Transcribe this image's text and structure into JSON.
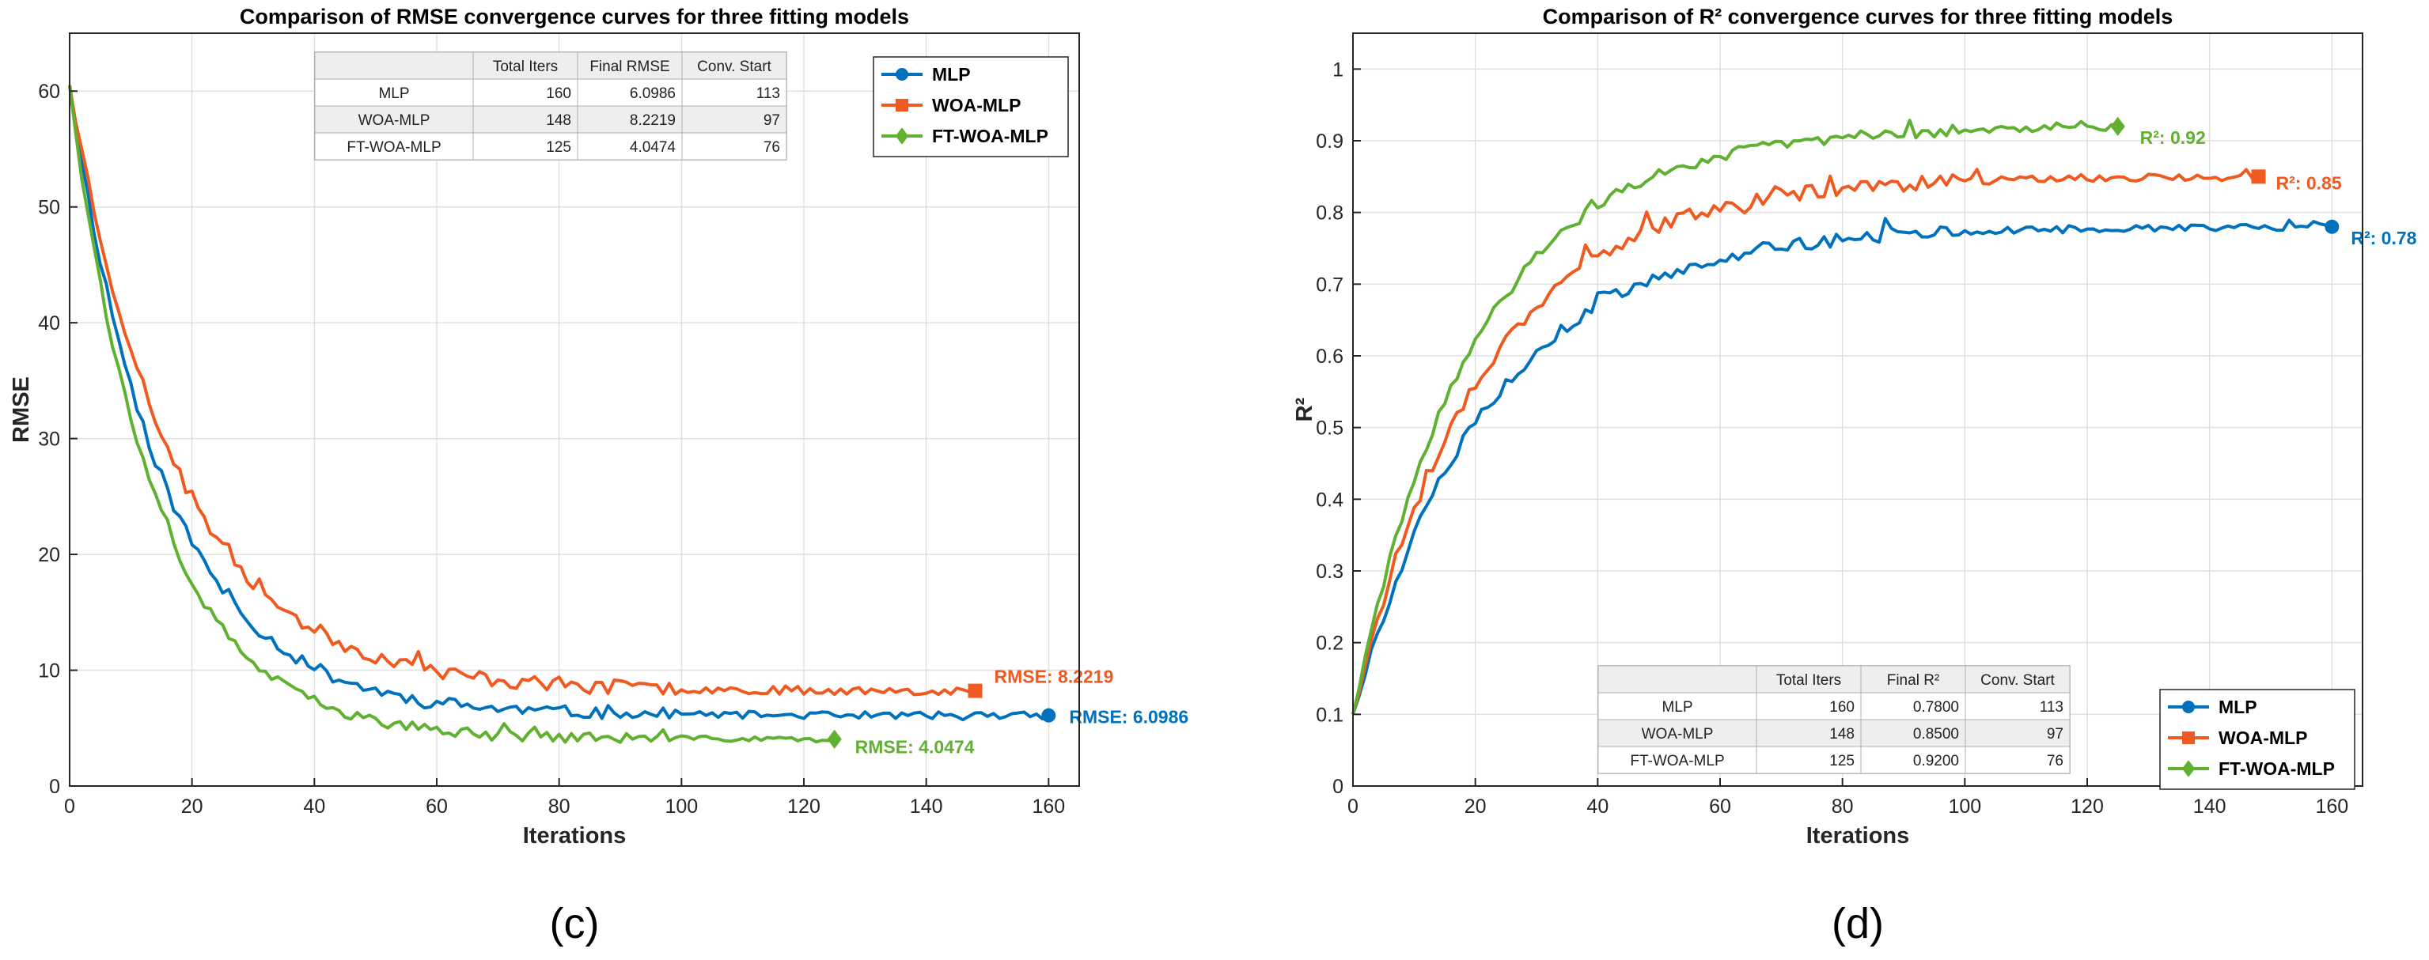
{
  "colors": {
    "mlp": "#0072BD",
    "woa": "#F0591F",
    "ft": "#5FB12F",
    "grid": "#e0e0e0",
    "axis": "#262626"
  },
  "chart_data": [
    {
      "panel_label": "(c)",
      "type": "line",
      "title": "Comparison of RMSE convergence curves for three fitting models",
      "xlabel": "Iterations",
      "ylabel": "RMSE",
      "xlim": [
        0,
        165
      ],
      "ylim": [
        0,
        65
      ],
      "xticks": [
        0,
        20,
        40,
        60,
        80,
        100,
        120,
        140,
        160
      ],
      "yticks": [
        0,
        10,
        20,
        30,
        40,
        50,
        60
      ],
      "xtick_labels": [
        "0",
        "20",
        "40",
        "60",
        "80",
        "100",
        "120",
        "140",
        "160"
      ],
      "ytick_labels": [
        "0",
        "10",
        "20",
        "30",
        "40",
        "50",
        "60"
      ],
      "grid": true,
      "legend": {
        "position": "top-right",
        "entries": [
          {
            "name": "MLP",
            "color": "#0072BD",
            "marker": "circle"
          },
          {
            "name": "WOA-MLP",
            "color": "#F0591F",
            "marker": "square"
          },
          {
            "name": "FT-WOA-MLP",
            "color": "#5FB12F",
            "marker": "diamond"
          }
        ]
      },
      "table": {
        "position": "top-center",
        "headers": [
          "",
          "Total Iters",
          "Final RMSE",
          "Conv. Start"
        ],
        "rows": [
          [
            "MLP",
            "160",
            "6.0986",
            "113"
          ],
          [
            "WOA-MLP",
            "148",
            "8.2219",
            "97"
          ],
          [
            "FT-WOA-MLP",
            "125",
            "4.0474",
            "76"
          ]
        ]
      },
      "series": [
        {
          "name": "MLP",
          "color": "#0072BD",
          "marker": "circle",
          "start": 60.5,
          "final": 6.0986,
          "total_iters": 160,
          "shape": "decay",
          "tau": 15.5,
          "noise": 0.55,
          "seed": 11,
          "end_label": "RMSE: 6.0986"
        },
        {
          "name": "WOA-MLP",
          "color": "#F0591F",
          "marker": "square",
          "start": 60.5,
          "final": 8.2219,
          "total_iters": 148,
          "shape": "decay",
          "tau": 17.5,
          "noise": 0.65,
          "seed": 23,
          "end_label": "RMSE: 8.2219"
        },
        {
          "name": "FT-WOA-MLP",
          "color": "#5FB12F",
          "marker": "diamond",
          "start": 60.5,
          "final": 4.0474,
          "total_iters": 125,
          "shape": "decay",
          "tau": 14.0,
          "noise": 0.45,
          "seed": 37,
          "end_label": "RMSE: 4.0474"
        }
      ]
    },
    {
      "panel_label": "(d)",
      "type": "line",
      "title": "Comparison of R² convergence curves for three fitting models",
      "xlabel": "Iterations",
      "ylabel": "R²",
      "xlim": [
        0,
        165
      ],
      "ylim": [
        0,
        1.05
      ],
      "xticks": [
        0,
        20,
        40,
        60,
        80,
        100,
        120,
        140,
        160
      ],
      "yticks": [
        0,
        0.1,
        0.2,
        0.3,
        0.4,
        0.5,
        0.6,
        0.7,
        0.8,
        0.9,
        1
      ],
      "xtick_labels": [
        "0",
        "20",
        "40",
        "60",
        "80",
        "100",
        "120",
        "140",
        "160"
      ],
      "ytick_labels": [
        "0",
        "0.1",
        "0.2",
        "0.3",
        "0.4",
        "0.5",
        "0.6",
        "0.7",
        "0.8",
        "0.9",
        "1"
      ],
      "grid": true,
      "legend": {
        "position": "bottom-right",
        "entries": [
          {
            "name": "MLP",
            "color": "#0072BD",
            "marker": "circle"
          },
          {
            "name": "WOA-MLP",
            "color": "#F0591F",
            "marker": "square"
          },
          {
            "name": "FT-WOA-MLP",
            "color": "#5FB12F",
            "marker": "diamond"
          }
        ]
      },
      "table": {
        "position": "bottom-center",
        "headers": [
          "",
          "Total Iters",
          "Final R²",
          "Conv. Start"
        ],
        "rows": [
          [
            "MLP",
            "160",
            "0.7800",
            "113"
          ],
          [
            "WOA-MLP",
            "148",
            "0.8500",
            "97"
          ],
          [
            "FT-WOA-MLP",
            "125",
            "0.9200",
            "76"
          ]
        ]
      },
      "series": [
        {
          "name": "MLP",
          "color": "#0072BD",
          "marker": "circle",
          "start": 0.1,
          "final": 0.78,
          "total_iters": 160,
          "shape": "rise",
          "tau": 22,
          "noise": 0.009,
          "seed": 5,
          "end_label": "R²: 0.78"
        },
        {
          "name": "WOA-MLP",
          "color": "#F0591F",
          "marker": "square",
          "start": 0.1,
          "final": 0.85,
          "total_iters": 148,
          "shape": "rise",
          "tau": 21,
          "noise": 0.01,
          "seed": 17,
          "end_label": "R²: 0.85"
        },
        {
          "name": "FT-WOA-MLP",
          "color": "#5FB12F",
          "marker": "diamond",
          "start": 0.1,
          "final": 0.92,
          "total_iters": 125,
          "shape": "rise",
          "tau": 20,
          "noise": 0.008,
          "seed": 29,
          "end_label": "R²: 0.92"
        }
      ]
    }
  ]
}
